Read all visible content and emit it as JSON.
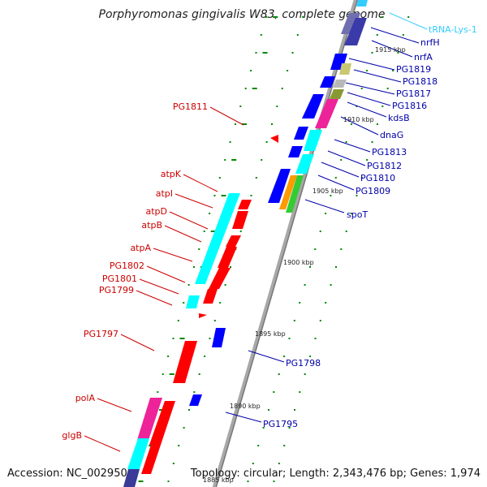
{
  "title": "Porphyromonas gingivalis W83, complete genome",
  "accession": "Accession: NC_002950",
  "topology": "Topology: circular; Length: 2,343,476 bp; Genes: 1,974",
  "colors": {
    "backbone": "#909090",
    "forward_cds": "#0000ff",
    "reverse_cds": "#ff0000",
    "trna": "#33ccff",
    "rrna_like": "#00ffff",
    "dots": "#008800",
    "left_labels": "#cc0000",
    "right_labels": "#0000aa"
  },
  "tick_labels": [
    "1915 kbp",
    "1910 kbp",
    "1905 kbp",
    "1900 kbp",
    "1895 kbp",
    "1890 kbp",
    "1885 kbp"
  ],
  "right_labels": [
    "tRNA-Lys-1",
    "nrfH",
    "nrfA",
    "PG1819",
    "PG1818",
    "PG1817",
    "PG1816",
    "kdsB",
    "dnaG",
    "PG1813",
    "PG1812",
    "PG1810",
    "PG1809",
    "spoT",
    "PG1798",
    "PG1795"
  ],
  "left_labels": [
    "PG1811",
    "atpK",
    "atpI",
    "atpD",
    "atpB",
    "atpA",
    "PG1802",
    "PG1801",
    "PG1799",
    "PG1797",
    "polA",
    "glgB"
  ]
}
